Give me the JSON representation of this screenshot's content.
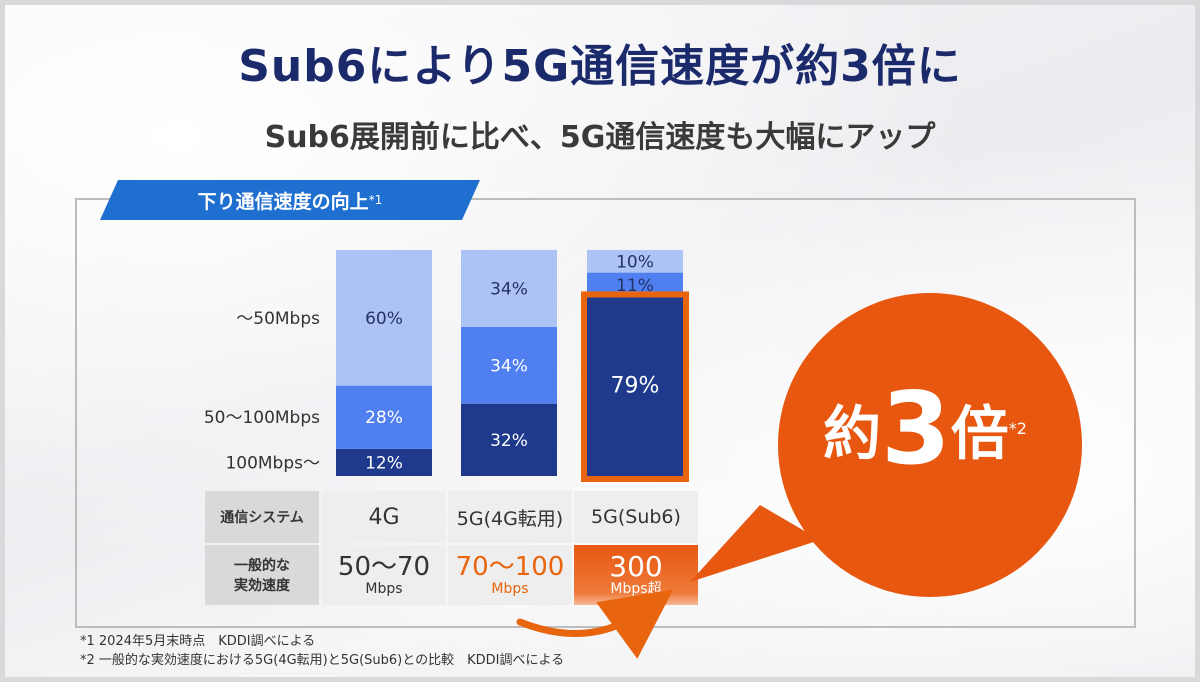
{
  "title": "Sub6により5G通信速度が約3倍に",
  "subtitle": "Sub6展開前に比べ、5G通信速度も大幅にアップ",
  "ribbon": {
    "label": "下り通信速度の向上",
    "note": "*1"
  },
  "chart_data": {
    "type": "bar",
    "stacked": true,
    "normalized_percent": true,
    "categories": [
      "4G",
      "5G(4G転用)",
      "5G(Sub6)"
    ],
    "series": [
      {
        "name": "100Mbps〜",
        "values": [
          12,
          32,
          79
        ],
        "color": "#1f3a8c"
      },
      {
        "name": "50〜100Mbps",
        "values": [
          28,
          34,
          11
        ],
        "color": "#4f7ff0"
      },
      {
        "name": "〜50Mbps",
        "values": [
          60,
          34,
          10
        ],
        "color": "#aec3f5"
      }
    ],
    "data_labels": [
      [
        "12%",
        "28%",
        "60%"
      ],
      [
        "32%",
        "34%",
        "34%"
      ],
      [
        "79%",
        "11%",
        "10%"
      ]
    ],
    "ylim": [
      0,
      100
    ],
    "highlight": "5G(Sub6)",
    "highlight_color": "#e8650e"
  },
  "table": {
    "row_headers": [
      "通信システム",
      "一般的な\n実効速度"
    ],
    "systems": [
      "4G",
      "5G(4G転用)",
      "5G(Sub6)"
    ],
    "speeds": [
      {
        "value": "50〜70",
        "unit": "Mbps"
      },
      {
        "value": "70〜100",
        "unit": "Mbps"
      },
      {
        "value": "300",
        "unit": "Mbps超"
      }
    ]
  },
  "callout": {
    "prefix": "約",
    "number": "3",
    "suffix": "倍",
    "note": "*2",
    "color": "#e8570f"
  },
  "footnotes": [
    "*1 2024年5月末時点　KDDI調べによる",
    "*2 一般的な実効速度における5G(4G転用)と5G(Sub6)との比較　KDDI調べによる"
  ]
}
